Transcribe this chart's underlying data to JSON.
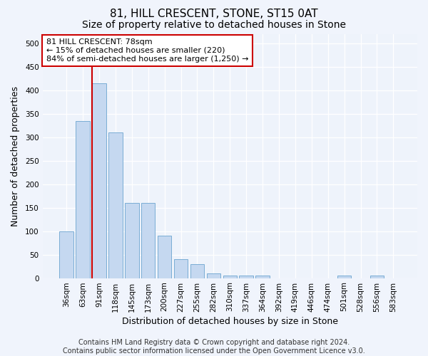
{
  "title": "81, HILL CRESCENT, STONE, ST15 0AT",
  "subtitle": "Size of property relative to detached houses in Stone",
  "xlabel": "Distribution of detached houses by size in Stone",
  "ylabel": "Number of detached properties",
  "categories": [
    "36sqm",
    "63sqm",
    "91sqm",
    "118sqm",
    "145sqm",
    "173sqm",
    "200sqm",
    "227sqm",
    "255sqm",
    "282sqm",
    "310sqm",
    "337sqm",
    "364sqm",
    "392sqm",
    "419sqm",
    "446sqm",
    "474sqm",
    "501sqm",
    "528sqm",
    "556sqm",
    "583sqm"
  ],
  "values": [
    100,
    335,
    415,
    310,
    160,
    160,
    90,
    40,
    30,
    10,
    5,
    5,
    5,
    0,
    0,
    0,
    0,
    5,
    0,
    5,
    0
  ],
  "bar_color": "#c5d8f0",
  "bar_edge_color": "#7aadd4",
  "vline_color": "#cc0000",
  "annotation_text": "81 HILL CRESCENT: 78sqm\n← 15% of detached houses are smaller (220)\n84% of semi-detached houses are larger (1,250) →",
  "annotation_box_color": "#ffffff",
  "annotation_box_edge": "#cc0000",
  "ylim": [
    0,
    520
  ],
  "yticks": [
    0,
    50,
    100,
    150,
    200,
    250,
    300,
    350,
    400,
    450,
    500
  ],
  "footer": "Contains HM Land Registry data © Crown copyright and database right 2024.\nContains public sector information licensed under the Open Government Licence v3.0.",
  "bg_color": "#f0f4fc",
  "plot_bg_color": "#eef3fb",
  "title_fontsize": 11,
  "subtitle_fontsize": 10,
  "tick_fontsize": 7.5,
  "label_fontsize": 9,
  "footer_fontsize": 7,
  "vline_pos": 1.575
}
